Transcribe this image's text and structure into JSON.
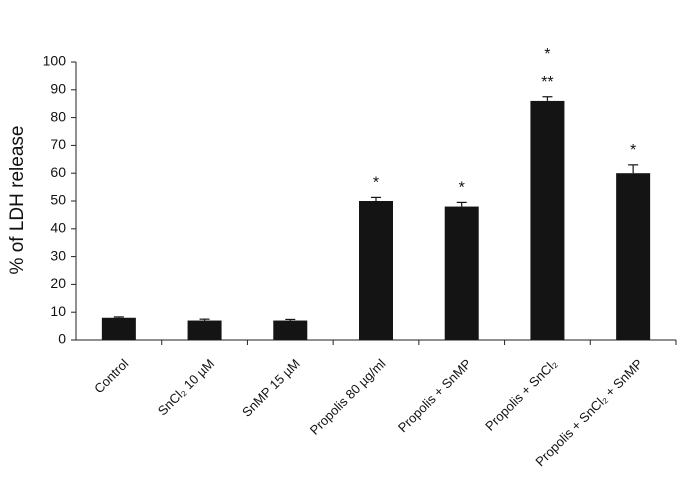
{
  "chart_data": {
    "type": "bar",
    "y_label": "% of LDH release",
    "categories": [
      "Control",
      "SnCl₂ 10 µM",
      "SnMP 15 µM",
      "Propolis 80 µg/ml",
      "Propolis + SnMP",
      "Propolis + SnCl₂",
      "Propolis + SnCl₂ + SnMP"
    ],
    "values": [
      8,
      7,
      7,
      50,
      48,
      86,
      60
    ],
    "errors": [
      0.3,
      0.5,
      0.4,
      1.3,
      1.5,
      1.5,
      3
    ],
    "color": "#141414",
    "ylim": [
      0,
      100
    ],
    "yticks": [
      0,
      10,
      20,
      30,
      40,
      50,
      60,
      70,
      80,
      90,
      100
    ],
    "annotations": [
      {
        "category": "Propolis 80 µg/ml",
        "text": "*"
      },
      {
        "category": "Propolis + SnMP",
        "text": "*"
      },
      {
        "category": "Propolis + SnCl₂",
        "text": "**"
      },
      {
        "category": "Propolis + SnCl₂",
        "text": "*"
      },
      {
        "category": "Propolis + SnCl₂ + SnMP",
        "text": "*"
      }
    ]
  }
}
